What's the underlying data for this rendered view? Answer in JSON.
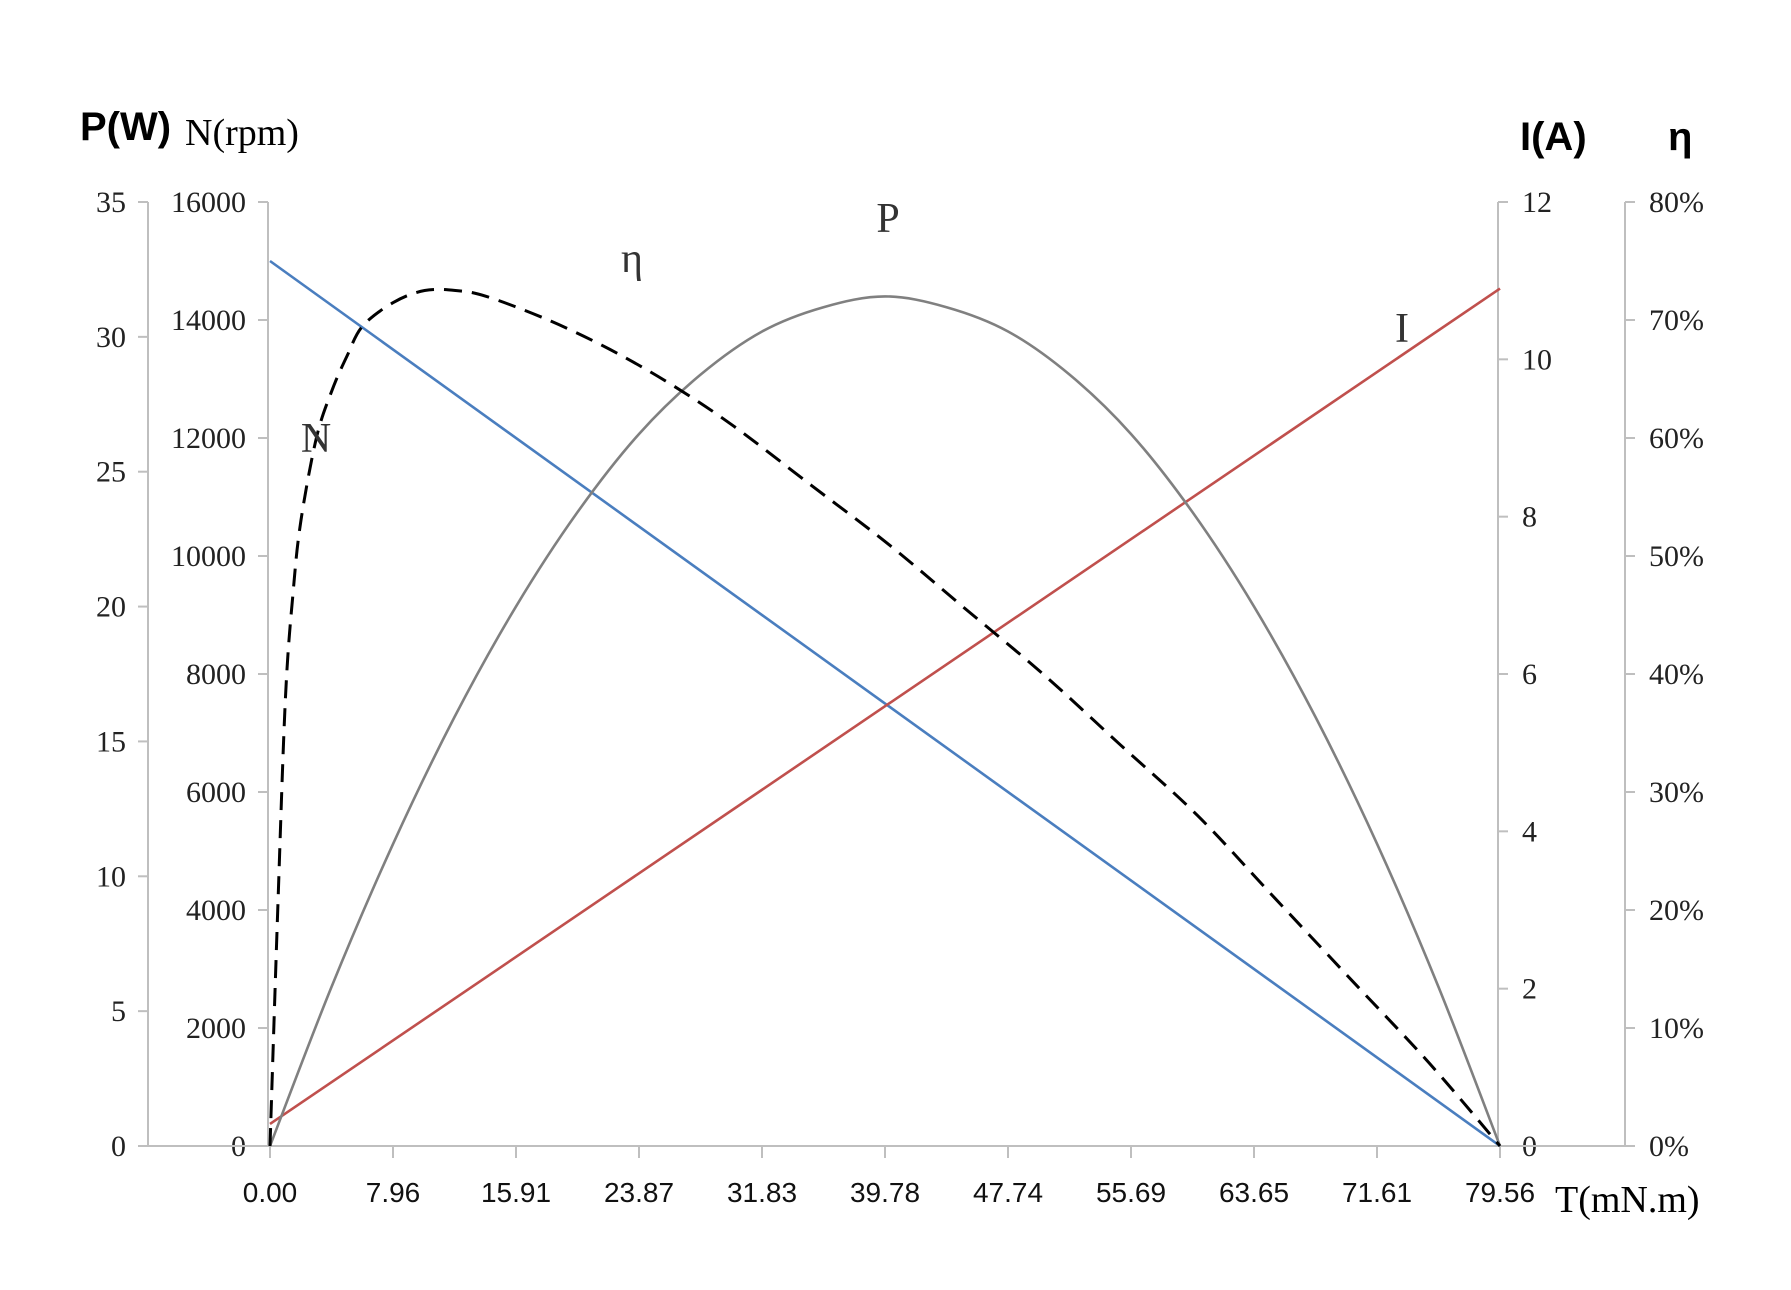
{
  "chart_data": {
    "type": "line",
    "x_axis": {
      "title": "T(mN.m)",
      "ticks": [
        "0.00",
        "7.96",
        "15.91",
        "23.87",
        "31.83",
        "39.78",
        "47.74",
        "55.69",
        "63.65",
        "71.61",
        "79.56"
      ],
      "range": [
        0,
        79.56
      ]
    },
    "y_axes": [
      {
        "id": "P",
        "title": "P(W)",
        "side": "left-outer",
        "range": [
          0,
          35
        ],
        "ticks": [
          "0",
          "5",
          "10",
          "15",
          "20",
          "25",
          "30",
          "35"
        ]
      },
      {
        "id": "N",
        "title": "N(rpm)",
        "side": "left-inner",
        "range": [
          0,
          16000
        ],
        "ticks": [
          "0",
          "2000",
          "4000",
          "6000",
          "8000",
          "10000",
          "12000",
          "14000",
          "16000"
        ]
      },
      {
        "id": "I",
        "title": "I(A)",
        "side": "right-inner",
        "range": [
          0,
          12
        ],
        "ticks": [
          "0",
          "2",
          "4",
          "6",
          "8",
          "10",
          "12"
        ]
      },
      {
        "id": "eta",
        "title": "η",
        "side": "right-outer",
        "range": [
          0,
          0.8
        ],
        "ticks": [
          "0%",
          "10%",
          "20%",
          "30%",
          "40%",
          "50%",
          "60%",
          "70%",
          "80%"
        ]
      }
    ],
    "series": [
      {
        "name": "N",
        "axis": "N",
        "color": "#4a7ebf",
        "style": "solid",
        "x": [
          0,
          79.56
        ],
        "y": [
          15000,
          0
        ]
      },
      {
        "name": "I",
        "axis": "I",
        "color": "#c0504d",
        "style": "solid",
        "x": [
          0,
          79.56
        ],
        "y": [
          0.28,
          10.9
        ]
      },
      {
        "name": "P",
        "axis": "P",
        "color": "#808080",
        "style": "solid",
        "x": [
          0,
          3.98,
          7.96,
          11.93,
          15.91,
          19.89,
          23.87,
          27.85,
          31.83,
          35.8,
          39.78,
          43.76,
          47.74,
          51.72,
          55.69,
          59.67,
          63.65,
          67.63,
          71.61,
          75.58,
          79.56
        ],
        "y": [
          0,
          5.9,
          11.2,
          15.9,
          20.0,
          23.5,
          26.4,
          28.6,
          30.2,
          31.1,
          31.5,
          31.1,
          30.2,
          28.6,
          26.4,
          23.5,
          20.0,
          15.9,
          11.2,
          5.9,
          0
        ]
      },
      {
        "name": "η",
        "axis": "eta",
        "color": "#000000",
        "style": "dashed",
        "x": [
          0,
          0.5,
          1,
          1.5,
          2,
          3,
          4,
          5,
          6,
          8,
          10,
          12,
          14,
          18,
          22,
          26,
          30,
          35,
          40,
          45,
          50,
          55,
          60,
          65,
          70,
          75,
          79.56
        ],
        "y": [
          0,
          0.2,
          0.38,
          0.47,
          0.53,
          0.6,
          0.64,
          0.67,
          0.695,
          0.715,
          0.725,
          0.725,
          0.72,
          0.7,
          0.675,
          0.645,
          0.61,
          0.56,
          0.51,
          0.455,
          0.4,
          0.34,
          0.28,
          0.21,
          0.14,
          0.07,
          0
        ]
      }
    ],
    "curve_labels": [
      "P",
      "η",
      "N",
      "I"
    ]
  }
}
